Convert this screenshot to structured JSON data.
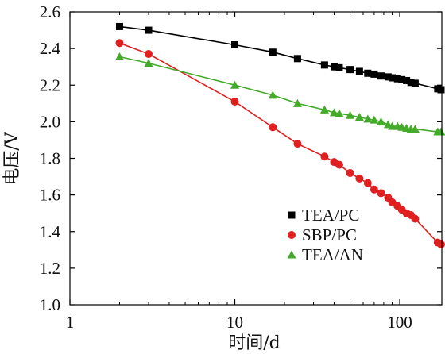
{
  "chart_data": {
    "type": "line",
    "x_scale": "log",
    "xlabel": "时间/d",
    "ylabel": "电压/V",
    "xlim": [
      1,
      180
    ],
    "ylim": [
      1.0,
      2.6
    ],
    "x_ticks": [
      {
        "value": 1,
        "label": "1"
      },
      {
        "value": 10,
        "label": "10"
      },
      {
        "value": 100,
        "label": "100"
      }
    ],
    "y_ticks": [
      {
        "value": 1.0,
        "label": "1.0"
      },
      {
        "value": 1.2,
        "label": "1.2"
      },
      {
        "value": 1.4,
        "label": "1.4"
      },
      {
        "value": 1.6,
        "label": "1.6"
      },
      {
        "value": 1.8,
        "label": "1.8"
      },
      {
        "value": 2.0,
        "label": "2.0"
      },
      {
        "value": 2.2,
        "label": "2.2"
      },
      {
        "value": 2.4,
        "label": "2.4"
      },
      {
        "value": 2.6,
        "label": "2.6"
      }
    ],
    "grid": false,
    "legend_position": "bottom-right",
    "series": [
      {
        "name": "TEA/PC",
        "color": "#000000",
        "marker": "square",
        "x": [
          2,
          3,
          10,
          17,
          24,
          35,
          40,
          43,
          50,
          57,
          64,
          70,
          77,
          85,
          90,
          97,
          103,
          110,
          117,
          124,
          170,
          178
        ],
        "y": [
          2.52,
          2.5,
          2.42,
          2.38,
          2.345,
          2.31,
          2.3,
          2.295,
          2.285,
          2.275,
          2.265,
          2.26,
          2.25,
          2.245,
          2.24,
          2.235,
          2.23,
          2.225,
          2.215,
          2.21,
          2.18,
          2.175
        ]
      },
      {
        "name": "SBP/PC",
        "color": "#e02020",
        "marker": "circle",
        "x": [
          2,
          3,
          10,
          17,
          24,
          35,
          40,
          43,
          50,
          57,
          64,
          70,
          77,
          85,
          90,
          97,
          103,
          110,
          117,
          124,
          170,
          178
        ],
        "y": [
          2.43,
          2.37,
          2.11,
          1.97,
          1.88,
          1.81,
          1.78,
          1.765,
          1.72,
          1.69,
          1.665,
          1.63,
          1.61,
          1.585,
          1.56,
          1.54,
          1.52,
          1.5,
          1.49,
          1.47,
          1.34,
          1.33
        ]
      },
      {
        "name": "TEA/AN",
        "color": "#44aa2a",
        "marker": "triangle",
        "x": [
          2,
          3,
          10,
          17,
          24,
          35,
          40,
          43,
          50,
          57,
          64,
          70,
          77,
          85,
          90,
          97,
          103,
          110,
          117,
          124,
          170,
          178
        ],
        "y": [
          2.355,
          2.32,
          2.2,
          2.145,
          2.1,
          2.065,
          2.05,
          2.045,
          2.035,
          2.025,
          2.015,
          2.01,
          2.0,
          1.985,
          1.975,
          1.975,
          1.97,
          1.965,
          1.96,
          1.96,
          1.945,
          1.945
        ]
      }
    ]
  }
}
